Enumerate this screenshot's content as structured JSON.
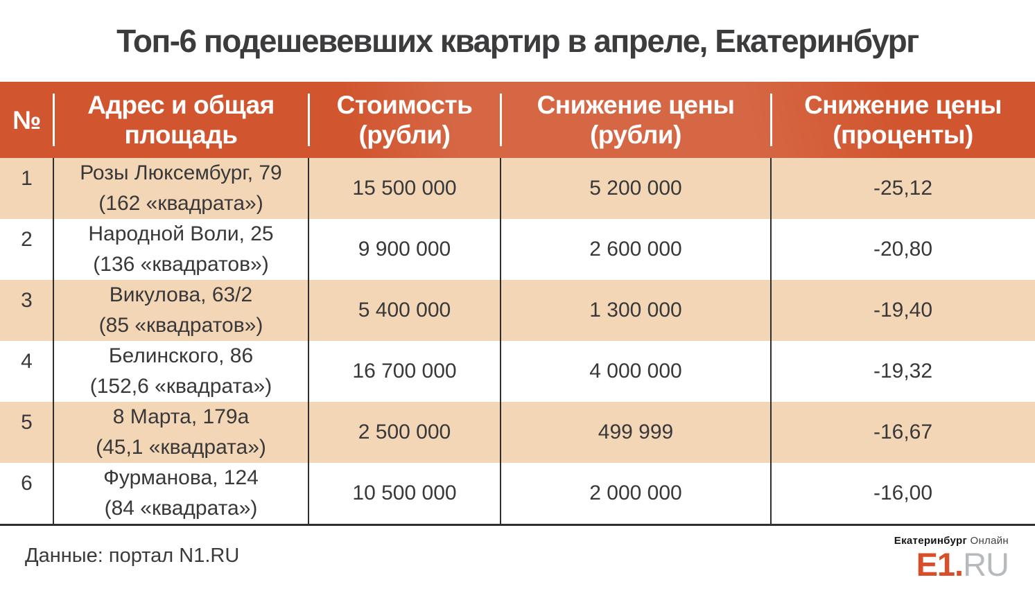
{
  "title": "Топ-6 подешевевших квартир в апреле, Екатеринбург",
  "colors": {
    "header_bg": "#d1562f",
    "row_alt_bg": "#f3d6b6",
    "text_dark": "#38383a",
    "divider_dark": "#2e2e2e",
    "logo_orange": "#d84e2a",
    "logo_gray": "#b7babc"
  },
  "table": {
    "columns": [
      {
        "line1": "№",
        "line2": ""
      },
      {
        "line1": "Адрес и общая",
        "line2": "площадь"
      },
      {
        "line1": "Стоимость",
        "line2": "(рубли)"
      },
      {
        "line1": "Снижение цены",
        "line2": "(рубли)"
      },
      {
        "line1": "Снижение цены",
        "line2": "(проценты)"
      }
    ],
    "rows": [
      {
        "num": "1",
        "address": "Розы Люксембург, 79",
        "area": "(162 «квадрата»)",
        "price": "15 500 000",
        "drop_rub": "5 200 000",
        "drop_pct": "-25,12"
      },
      {
        "num": "2",
        "address": "Народной Воли, 25",
        "area": "(136 «квадратов»)",
        "price": "9 900 000",
        "drop_rub": "2 600 000",
        "drop_pct": "-20,80"
      },
      {
        "num": "3",
        "address": "Викулова, 63/2",
        "area": "(85 «квадратов»)",
        "price": "5 400 000",
        "drop_rub": "1 300 000",
        "drop_pct": "-19,40"
      },
      {
        "num": "4",
        "address": "Белинского, 86",
        "area": "(152,6 «квадрата»)",
        "price": "16 700 000",
        "drop_rub": "4 000 000",
        "drop_pct": "-19,32"
      },
      {
        "num": "5",
        "address": "8 Марта, 179а",
        "area": "(45,1 «квадрата»)",
        "price": "2 500 000",
        "drop_rub": "499 999",
        "drop_pct": "-16,67"
      },
      {
        "num": "6",
        "address": "Фурманова, 124",
        "area": "(84 «квадрата»)",
        "price": "10 500 000",
        "drop_rub": "2 000 000",
        "drop_pct": "-16,00"
      }
    ]
  },
  "footer": {
    "source": "Данные: портал N1.RU",
    "logo": {
      "city": "Екатеринбург",
      "online": "Онлайн",
      "e1": "E1.",
      "ru": "RU"
    }
  },
  "chart_data": {
    "type": "table",
    "title": "Топ-6 подешевевших квартир в апреле, Екатеринбург",
    "columns": [
      "№",
      "Адрес и общая площадь",
      "Стоимость (рубли)",
      "Снижение цены (рубли)",
      "Снижение цены (проценты)"
    ],
    "rows": [
      [
        "1",
        "Розы Люксембург, 79 (162 «квадрата»)",
        "15 500 000",
        "5 200 000",
        "-25,12"
      ],
      [
        "2",
        "Народной Воли, 25 (136 «квадратов»)",
        "9 900 000",
        "2 600 000",
        "-20,80"
      ],
      [
        "3",
        "Викулова, 63/2 (85 «квадратов»)",
        "5 400 000",
        "1 300 000",
        "-19,40"
      ],
      [
        "4",
        "Белинского, 86 (152,6 «квадрата»)",
        "16 700 000",
        "4 000 000",
        "-19,32"
      ],
      [
        "5",
        "8 Марта, 179а (45,1 «квадрата»)",
        "2 500 000",
        "499 999",
        "-16,67"
      ],
      [
        "6",
        "Фурманова, 124 (84 «квадрата»)",
        "10 500 000",
        "2 000 000",
        "-16,00"
      ]
    ],
    "source": "Данные: портал N1.RU"
  }
}
